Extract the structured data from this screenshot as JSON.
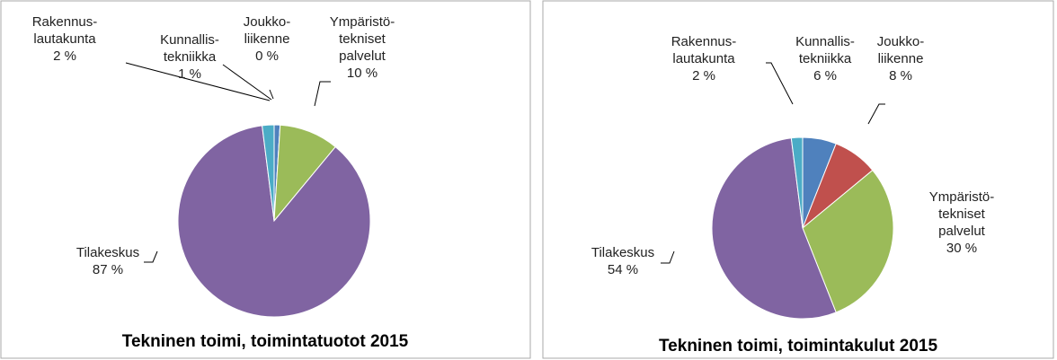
{
  "chart_data": [
    {
      "type": "pie",
      "title": "Tekninen toimi, toimintatuotot 2015",
      "categories": [
        "Kunnallis-\ntekniikka",
        "Joukko-\nliikenne",
        "Ympäristö-\ntekniset\npalvelut",
        "Tilakeskus",
        "Rakennus-\nlautakunta"
      ],
      "values": [
        1,
        0,
        10,
        87,
        2
      ],
      "value_labels": [
        "1 %",
        "0 %",
        "10 %",
        "87 %",
        "2 %"
      ],
      "colors": [
        "#4f81bd",
        "#c0504d",
        "#9bbb59",
        "#8064a2",
        "#4bacc6"
      ]
    },
    {
      "type": "pie",
      "title": "Tekninen toimi, toimintakulut 2015",
      "categories": [
        "Kunnallis-\ntekniikka",
        "Joukko-\nliikenne",
        "Ympäristö-\ntekniset\npalvelut",
        "Tilakeskus",
        "Rakennus-\nlautakunta"
      ],
      "values": [
        6,
        8,
        30,
        54,
        2
      ],
      "value_labels": [
        "6 %",
        "8 %",
        "30 %",
        "54 %",
        "2 %"
      ],
      "colors": [
        "#4f81bd",
        "#c0504d",
        "#9bbb59",
        "#8064a2",
        "#4bacc6"
      ]
    }
  ]
}
